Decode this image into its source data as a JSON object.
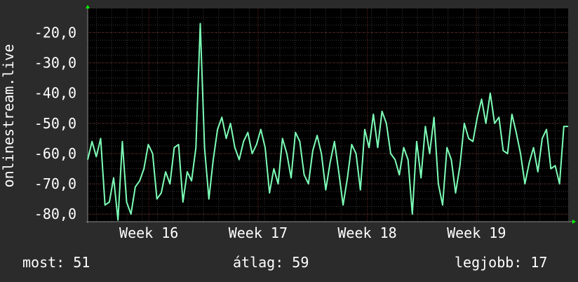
{
  "chart_data": {
    "type": "line",
    "ylabel": "onlinestream.live",
    "ylim": [
      -82.5,
      -12
    ],
    "y_ticks": [
      {
        "value": -20,
        "label": "-20,0"
      },
      {
        "value": -30,
        "label": "-30,0"
      },
      {
        "value": -40,
        "label": "-40,0"
      },
      {
        "value": -50,
        "label": "-50,0"
      },
      {
        "value": -60,
        "label": "-60,0"
      },
      {
        "value": -70,
        "label": "-70,0"
      },
      {
        "value": -80,
        "label": "-80,0"
      }
    ],
    "xlim": [
      0,
      110
    ],
    "x_ticks": [
      {
        "value": 14,
        "label": "Week 16"
      },
      {
        "value": 39,
        "label": "Week 17"
      },
      {
        "value": 64,
        "label": "Week 18"
      },
      {
        "value": 89,
        "label": "Week 19"
      }
    ],
    "series": [
      {
        "values": [
          -62,
          -56,
          -61,
          -55,
          -77,
          -76,
          -68,
          -82,
          -56,
          -76,
          -80,
          -71,
          -69,
          -65,
          -57,
          -60,
          -75,
          -73,
          -66,
          -70,
          -58,
          -57,
          -76,
          -66,
          -69,
          -58,
          -17,
          -58,
          -75,
          -62,
          -52,
          -48,
          -55,
          -50,
          -58,
          -62,
          -56,
          -53,
          -60,
          -57,
          -52,
          -58,
          -73,
          -65,
          -70,
          -55,
          -60,
          -68,
          -53,
          -56,
          -67,
          -70,
          -59,
          -54,
          -60,
          -72,
          -63,
          -56,
          -66,
          -77,
          -68,
          -57,
          -60,
          -72,
          -52,
          -58,
          -47,
          -58,
          -46,
          -50,
          -60,
          -62,
          -67,
          -58,
          -62,
          -80,
          -56,
          -68,
          -51,
          -60,
          -48,
          -70,
          -77,
          -58,
          -62,
          -73,
          -64,
          -50,
          -55,
          -56,
          -48,
          -42,
          -50,
          -40,
          -50,
          -48,
          -59,
          -60,
          -47,
          -53,
          -60,
          -70,
          -63,
          -58,
          -66,
          -55,
          -52,
          -65,
          -64,
          -70,
          -51,
          -51
        ]
      }
    ]
  },
  "footer": {
    "current": "most: 51",
    "average": "átlag: 59",
    "best": "legjobb: 17"
  },
  "colors": {
    "background": "#2b2b2b",
    "plot_background": "#000000",
    "line": "#7dffb7",
    "grid": "#3a3a3a",
    "axis": "#8a8a8a",
    "arrow": "#00ff00",
    "text": "#ffffff"
  }
}
